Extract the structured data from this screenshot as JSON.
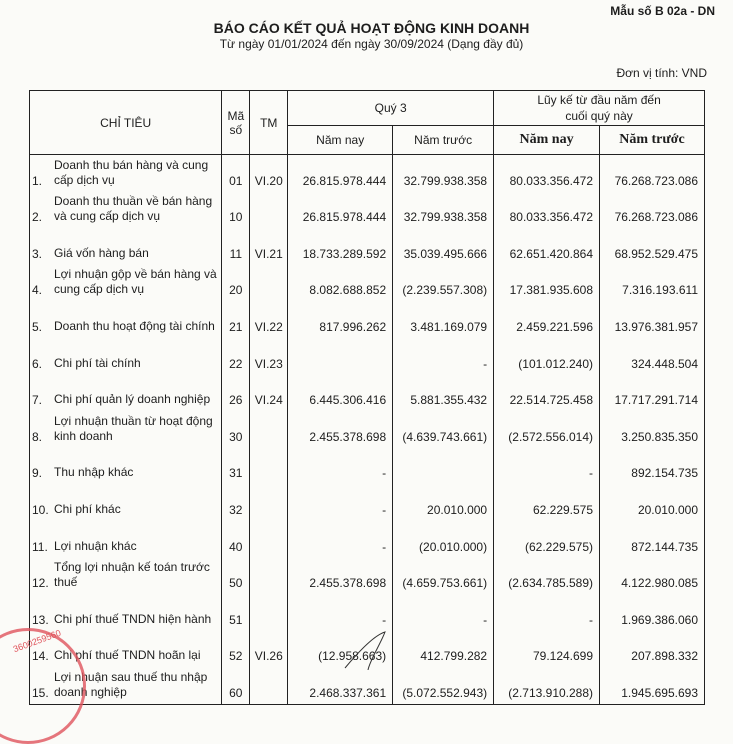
{
  "form_number": "Mẫu số B 02a - DN",
  "title": "BÁO CÁO KẾT QUẢ HOẠT ĐỘNG KINH DOANH",
  "subtitle": "Từ ngày 01/01/2024 đến ngày 30/09/2024 (Dạng đầy đủ)",
  "unit": "Đơn vị tính: VND",
  "headers": {
    "item": "CHỈ TIÊU",
    "code": "Mã số",
    "note": "TM",
    "quarter": "Quý 3",
    "ytd": "Lũy kế từ đầu năm đến cuối quý này",
    "this_year": "Năm nay",
    "last_year": "Năm trước"
  },
  "rows": [
    {
      "idx": "1.",
      "label": "Doanh thu bán hàng và cung cấp dịch vụ",
      "code": "01",
      "note": "VI.20",
      "q_cur": "26.815.978.444",
      "q_prev": "32.799.938.358",
      "y_cur": "80.033.356.472",
      "y_prev": "76.268.723.086"
    },
    {
      "idx": "2.",
      "label": "Doanh thu thuần về bán hàng và cung cấp dịch vụ",
      "code": "10",
      "note": "",
      "q_cur": "26.815.978.444",
      "q_prev": "32.799.938.358",
      "y_cur": "80.033.356.472",
      "y_prev": "76.268.723.086"
    },
    {
      "idx": "3.",
      "label": "Giá vốn hàng bán",
      "code": "11",
      "note": "VI.21",
      "q_cur": "18.733.289.592",
      "q_prev": "35.039.495.666",
      "y_cur": "62.651.420.864",
      "y_prev": "68.952.529.475"
    },
    {
      "idx": "4.",
      "label": "Lợi nhuận gộp về bán hàng và cung cấp dịch vụ",
      "code": "20",
      "note": "",
      "q_cur": "8.082.688.852",
      "q_prev": "(2.239.557.308)",
      "y_cur": "17.381.935.608",
      "y_prev": "7.316.193.611"
    },
    {
      "idx": "5.",
      "label": "Doanh thu hoạt động tài chính",
      "code": "21",
      "note": "VI.22",
      "q_cur": "817.996.262",
      "q_prev": "3.481.169.079",
      "y_cur": "2.459.221.596",
      "y_prev": "13.976.381.957"
    },
    {
      "idx": "6.",
      "label": "Chi phí tài chính",
      "code": "22",
      "note": "VI.23",
      "q_cur": "",
      "q_prev": "-",
      "y_cur": "(101.012.240)",
      "y_prev": "324.448.504"
    },
    {
      "idx": "7.",
      "label": "Chi phí quản lý doanh nghiệp",
      "code": "26",
      "note": "VI.24",
      "q_cur": "6.445.306.416",
      "q_prev": "5.881.355.432",
      "y_cur": "22.514.725.458",
      "y_prev": "17.717.291.714"
    },
    {
      "idx": "8.",
      "label": "Lợi nhuận thuần từ hoạt động kinh doanh",
      "code": "30",
      "note": "",
      "q_cur": "2.455.378.698",
      "q_prev": "(4.639.743.661)",
      "y_cur": "(2.572.556.014)",
      "y_prev": "3.250.835.350"
    },
    {
      "idx": "9.",
      "label": "Thu nhập khác",
      "code": "31",
      "note": "",
      "q_cur": "-",
      "q_prev": "",
      "y_cur": "-",
      "y_prev": "892.154.735"
    },
    {
      "idx": "10.",
      "label": "Chi phí khác",
      "code": "32",
      "note": "",
      "q_cur": "-",
      "q_prev": "20.010.000",
      "y_cur": "62.229.575",
      "y_prev": "20.010.000"
    },
    {
      "idx": "11.",
      "label": "Lợi nhuận khác",
      "code": "40",
      "note": "",
      "q_cur": "-",
      "q_prev": "(20.010.000)",
      "y_cur": "(62.229.575)",
      "y_prev": "872.144.735"
    },
    {
      "idx": "12.",
      "label": "Tổng lợi nhuận kế toán trước thuế",
      "code": "50",
      "note": "",
      "q_cur": "2.455.378.698",
      "q_prev": "(4.659.753.661)",
      "y_cur": "(2.634.785.589)",
      "y_prev": "4.122.980.085"
    },
    {
      "idx": "13.",
      "label": "Chi phí thuế TNDN hiện hành",
      "code": "51",
      "note": "",
      "q_cur": "-",
      "q_prev": "-",
      "y_cur": "-",
      "y_prev": "1.969.386.060"
    },
    {
      "idx": "14.",
      "label": "Chi phí thuế TNDN hoãn lại",
      "code": "52",
      "note": "VI.26",
      "q_cur": "(12.958.663)",
      "q_prev": "412.799.282",
      "y_cur": "79.124.699",
      "y_prev": "207.898.332"
    },
    {
      "idx": "15.",
      "label": "Lợi nhuận sau thuế thu nhập doanh nghiệp",
      "code": "60",
      "note": "",
      "q_cur": "2.468.337.361",
      "q_prev": "(5.072.552.943)",
      "y_cur": "(2.713.910.288)",
      "y_prev": "1.945.695.693"
    }
  ],
  "stamp_text": "3600259560",
  "colors": {
    "stamp": "#e0545c",
    "ink": "#1d1d1d"
  }
}
